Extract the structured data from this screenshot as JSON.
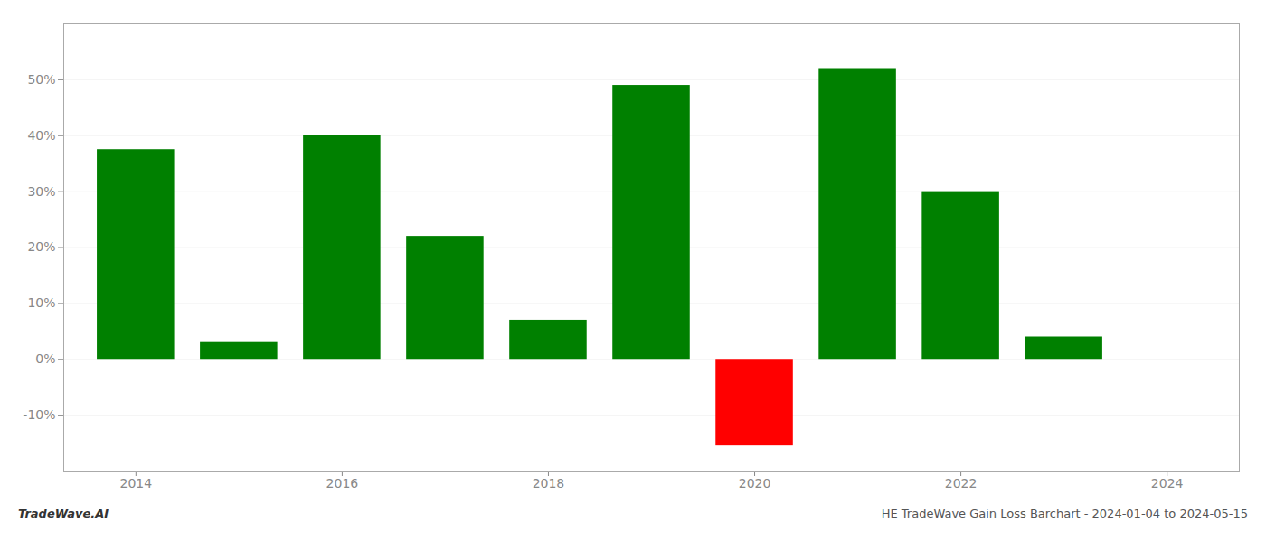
{
  "chart_data": {
    "type": "bar",
    "x": [
      2014,
      2015,
      2016,
      2017,
      2018,
      2019,
      2020,
      2021,
      2022,
      2023
    ],
    "values": [
      0.375,
      0.03,
      0.4,
      0.22,
      0.07,
      0.49,
      -0.155,
      0.52,
      0.3,
      0.04
    ],
    "colors": [
      "#008000",
      "#008000",
      "#008000",
      "#008000",
      "#008000",
      "#008000",
      "#ff0000",
      "#008000",
      "#008000",
      "#008000"
    ],
    "xlim": [
      2013.3,
      2024.7
    ],
    "xticks": [
      2014,
      2016,
      2018,
      2020,
      2022,
      2024
    ],
    "ylim": [
      -0.2,
      0.6
    ],
    "yticks": [
      {
        "value": -0.1,
        "label": "-10%"
      },
      {
        "value": 0.0,
        "label": "0%"
      },
      {
        "value": 0.1,
        "label": "10%"
      },
      {
        "value": 0.2,
        "label": "20%"
      },
      {
        "value": 0.3,
        "label": "30%"
      },
      {
        "value": 0.4,
        "label": "40%"
      },
      {
        "value": 0.5,
        "label": "50%"
      }
    ],
    "grid": true,
    "annotations": [
      "TradeWave.AI",
      "HE TradeWave Gain Loss Barchart - 2024-01-04 to 2024-05-15"
    ]
  }
}
